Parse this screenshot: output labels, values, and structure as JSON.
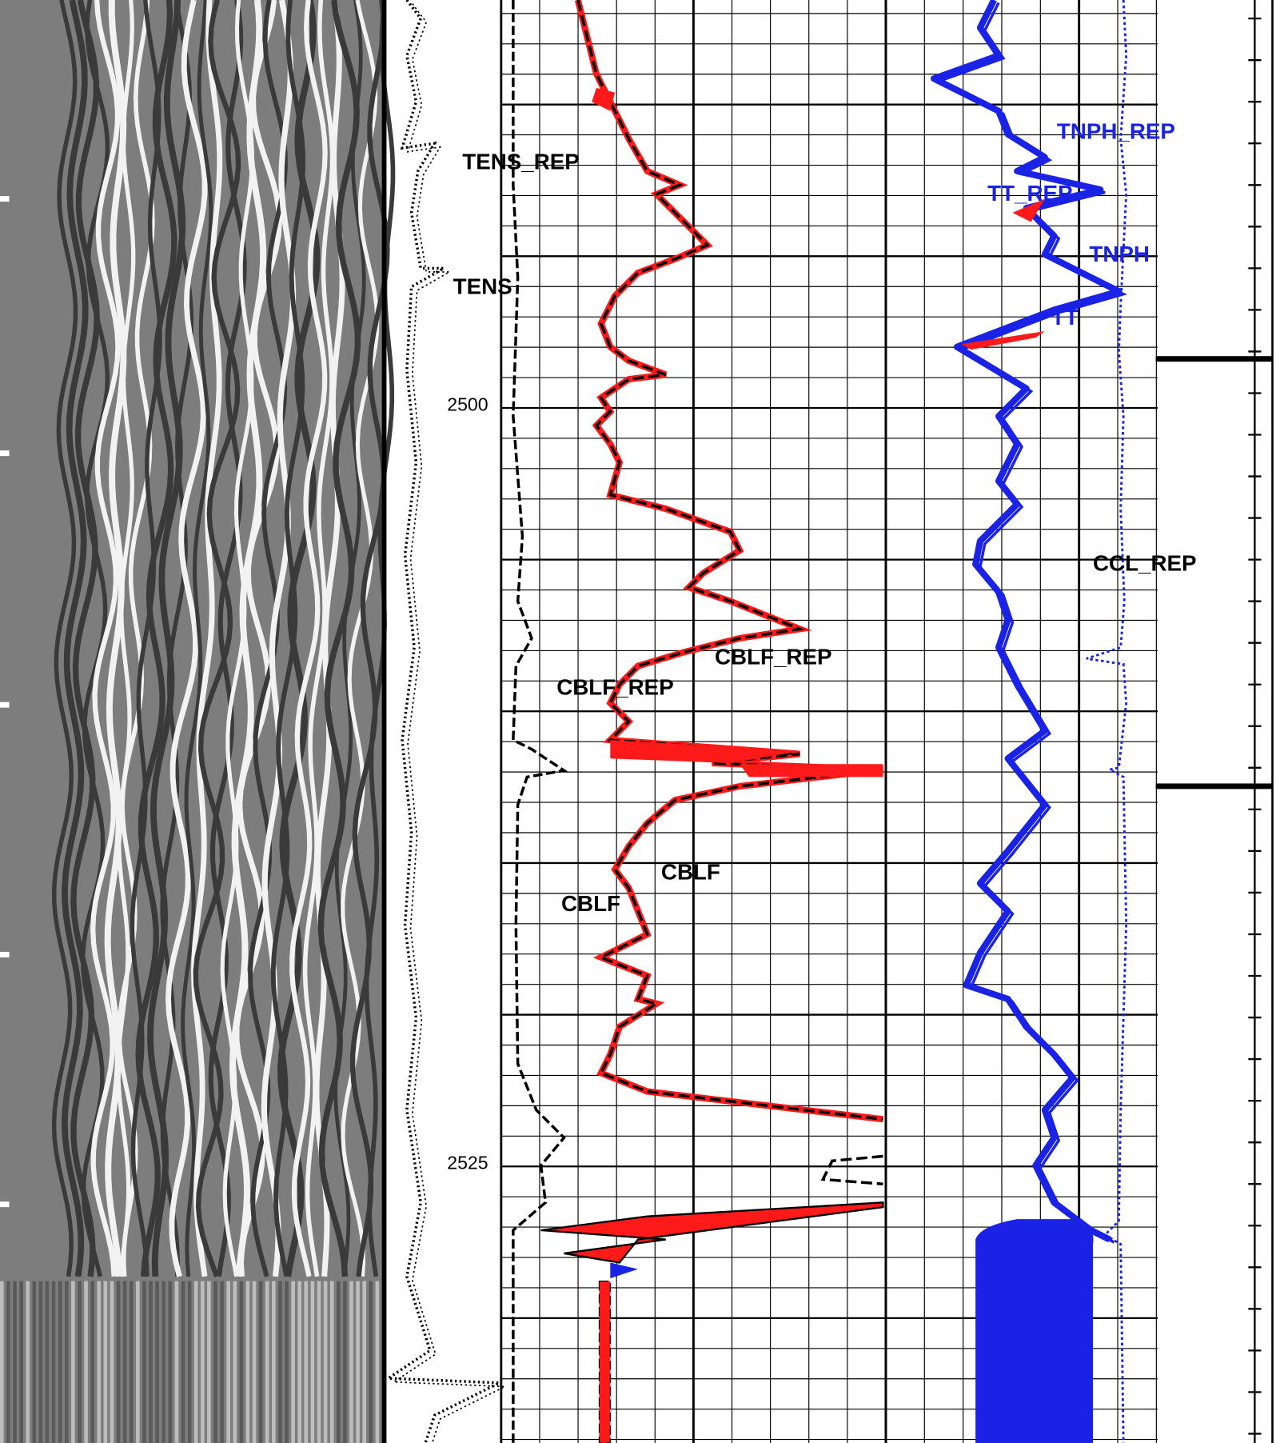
{
  "depth_labels": [
    "2500",
    "2525"
  ],
  "curve_labels": {
    "tens_rep": "TENS_REP",
    "tens": "TENS",
    "cblf_rep_right": "CBLF_REP",
    "cblf_rep_left": "CBLF_REP",
    "cblf_right": "CBLF",
    "cblf_left": "CBLF",
    "tnph_rep": "TNPH_REP",
    "tt_rep": "TT_REP",
    "tnph": "TNPH",
    "tt": "TT",
    "ccl_rep": "CCL_REP"
  }
}
